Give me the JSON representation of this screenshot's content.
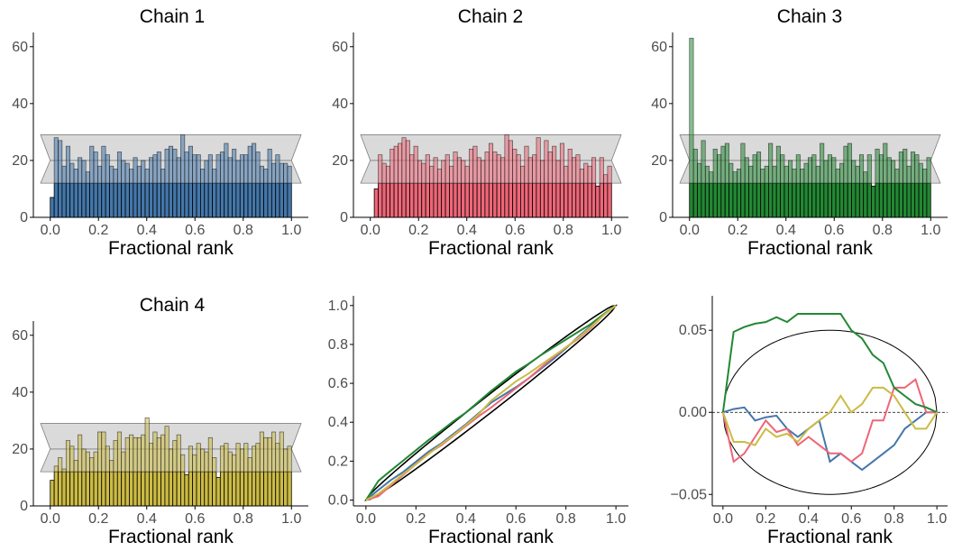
{
  "colors": {
    "chain1": "#4477aa",
    "chain2": "#ee6677",
    "chain3": "#228833",
    "chain4": "#ccbb44",
    "band": "#d3d3d3",
    "band_stroke": "#7f7f7f"
  },
  "chart_data": [
    {
      "type": "bar",
      "title": "Chain 1",
      "xlabel": "Fractional rank",
      "ylabel": "",
      "color": "#4477aa",
      "xlim": [
        -0.07,
        1.07
      ],
      "ylim": [
        0,
        65
      ],
      "xticks": [
        0.0,
        0.2,
        0.4,
        0.6,
        0.8,
        1.0
      ],
      "xtick_labels": [
        "0.0",
        "0.2",
        "0.4",
        "0.6",
        "0.8",
        "1.0"
      ],
      "yticks": [
        0,
        20,
        40,
        60
      ],
      "ytick_labels": [
        "0",
        "20",
        "40",
        "60"
      ],
      "band": {
        "upper": 29,
        "lower": 12,
        "mid": 20
      },
      "values": [
        7,
        28,
        27,
        18,
        25,
        19,
        17,
        21,
        20,
        16,
        25,
        23,
        18,
        25,
        22,
        18,
        17,
        23,
        20,
        19,
        17,
        21,
        18,
        20,
        17,
        21,
        22,
        23,
        17,
        24,
        25,
        24,
        21,
        29,
        23,
        25,
        22,
        22,
        17,
        20,
        22,
        17,
        22,
        23,
        26,
        21,
        24,
        20,
        22,
        22,
        25,
        26,
        23,
        18,
        17,
        24,
        19,
        22,
        19,
        19,
        18
      ]
    },
    {
      "type": "bar",
      "title": "Chain 2",
      "xlabel": "Fractional rank",
      "ylabel": "",
      "color": "#ee6677",
      "xlim": [
        -0.07,
        1.07
      ],
      "ylim": [
        0,
        65
      ],
      "xticks": [
        0.0,
        0.2,
        0.4,
        0.6,
        0.8,
        1.0
      ],
      "xtick_labels": [
        "0.0",
        "0.2",
        "0.4",
        "0.6",
        "0.8",
        "1.0"
      ],
      "yticks": [
        0,
        20,
        40,
        60
      ],
      "ytick_labels": [
        "0",
        "20",
        "40",
        "60"
      ],
      "band": {
        "upper": 29,
        "lower": 12,
        "mid": 20
      },
      "values": [
        0,
        10,
        22,
        19,
        18,
        24,
        25,
        26,
        28,
        27,
        22,
        25,
        20,
        19,
        22,
        18,
        21,
        17,
        20,
        22,
        18,
        23,
        21,
        20,
        18,
        24,
        25,
        21,
        20,
        23,
        26,
        23,
        22,
        21,
        29,
        27,
        24,
        22,
        18,
        25,
        21,
        22,
        28,
        20,
        27,
        23,
        25,
        20,
        26,
        18,
        24,
        21,
        22,
        17,
        19,
        18,
        21,
        11,
        21,
        15,
        18
      ]
    },
    {
      "type": "bar",
      "title": "Chain 3",
      "xlabel": "Fractional rank",
      "ylabel": "",
      "color": "#228833",
      "xlim": [
        -0.07,
        1.07
      ],
      "ylim": [
        0,
        65
      ],
      "xticks": [
        0.0,
        0.2,
        0.4,
        0.6,
        0.8,
        1.0
      ],
      "xtick_labels": [
        "0.0",
        "0.2",
        "0.4",
        "0.6",
        "0.8",
        "1.0"
      ],
      "yticks": [
        0,
        20,
        40,
        60
      ],
      "ytick_labels": [
        "0",
        "20",
        "40",
        "60"
      ],
      "band": {
        "upper": 29,
        "lower": 12,
        "mid": 20
      },
      "values": [
        63,
        24,
        19,
        27,
        18,
        16,
        24,
        22,
        25,
        26,
        19,
        16,
        17,
        26,
        21,
        18,
        22,
        23,
        17,
        18,
        26,
        18,
        25,
        22,
        18,
        20,
        17,
        22,
        17,
        19,
        21,
        22,
        18,
        26,
        20,
        22,
        21,
        17,
        19,
        25,
        26,
        20,
        18,
        22,
        16,
        22,
        11,
        24,
        22,
        26,
        21,
        20,
        17,
        23,
        24,
        18,
        23,
        22,
        19,
        17,
        21
      ]
    },
    {
      "type": "bar",
      "title": "Chain 4",
      "xlabel": "Fractional rank",
      "ylabel": "",
      "color": "#ccbb44",
      "xlim": [
        -0.07,
        1.07
      ],
      "ylim": [
        0,
        65
      ],
      "xticks": [
        0.0,
        0.2,
        0.4,
        0.6,
        0.8,
        1.0
      ],
      "xtick_labels": [
        "0.0",
        "0.2",
        "0.4",
        "0.6",
        "0.8",
        "1.0"
      ],
      "yticks": [
        0,
        20,
        40,
        60
      ],
      "ytick_labels": [
        "0",
        "20",
        "40",
        "60"
      ],
      "band": {
        "upper": 29,
        "lower": 12,
        "mid": 20
      },
      "values": [
        9,
        14,
        17,
        13,
        23,
        21,
        16,
        25,
        20,
        19,
        17,
        19,
        26,
        26,
        21,
        16,
        23,
        26,
        19,
        24,
        25,
        24,
        24,
        25,
        31,
        22,
        26,
        24,
        25,
        28,
        20,
        23,
        25,
        18,
        11,
        21,
        18,
        22,
        20,
        19,
        24,
        17,
        10,
        21,
        22,
        19,
        18,
        22,
        20,
        22,
        17,
        21,
        22,
        26,
        24,
        24,
        26,
        22,
        26,
        20,
        21
      ]
    },
    {
      "type": "line",
      "title": "",
      "xlabel": "Fractional rank",
      "ylabel": "",
      "xlim": [
        -0.05,
        1.05
      ],
      "ylim": [
        -0.03,
        1.05
      ],
      "xticks": [
        0.0,
        0.2,
        0.4,
        0.6,
        0.8,
        1.0
      ],
      "xtick_labels": [
        "0.0",
        "0.2",
        "0.4",
        "0.6",
        "0.8",
        "1.0"
      ],
      "yticks": [
        0.0,
        0.2,
        0.4,
        0.6,
        0.8,
        1.0
      ],
      "ytick_labels": [
        "0.0",
        "0.2",
        "0.4",
        "0.6",
        "0.8",
        "1.0"
      ],
      "envelope_halfwidth": 0.05,
      "x": [
        0.0,
        0.05,
        0.1,
        0.15,
        0.2,
        0.25,
        0.3,
        0.35,
        0.4,
        0.45,
        0.5,
        0.55,
        0.6,
        0.65,
        0.7,
        0.75,
        0.8,
        0.85,
        0.9,
        0.95,
        1.0
      ],
      "series": [
        {
          "color": "#4477aa",
          "values": [
            0.0,
            0.052,
            0.103,
            0.145,
            0.197,
            0.248,
            0.29,
            0.34,
            0.39,
            0.445,
            0.5,
            0.54,
            0.58,
            0.625,
            0.675,
            0.725,
            0.78,
            0.84,
            0.895,
            0.95,
            1.0
          ]
        },
        {
          "color": "#ee6677",
          "values": [
            0.0,
            0.02,
            0.075,
            0.13,
            0.185,
            0.24,
            0.28,
            0.33,
            0.38,
            0.43,
            0.475,
            0.525,
            0.575,
            0.625,
            0.68,
            0.735,
            0.785,
            0.83,
            0.885,
            0.95,
            1.0
          ]
        },
        {
          "color": "#228833",
          "values": [
            0.0,
            0.099,
            0.152,
            0.204,
            0.256,
            0.308,
            0.355,
            0.405,
            0.45,
            0.505,
            0.56,
            0.61,
            0.66,
            0.7,
            0.745,
            0.785,
            0.825,
            0.865,
            0.905,
            0.955,
            1.0
          ]
        },
        {
          "color": "#ccbb44",
          "values": [
            0.0,
            0.032,
            0.082,
            0.135,
            0.183,
            0.237,
            0.285,
            0.333,
            0.385,
            0.44,
            0.51,
            0.56,
            0.61,
            0.65,
            0.695,
            0.74,
            0.785,
            0.835,
            0.89,
            0.95,
            1.0
          ]
        }
      ]
    },
    {
      "type": "line",
      "title": "",
      "xlabel": "Fractional rank",
      "ylabel": "",
      "xlim": [
        -0.05,
        1.05
      ],
      "ylim": [
        -0.057,
        0.071
      ],
      "xticks": [
        0.0,
        0.2,
        0.4,
        0.6,
        0.8,
        1.0
      ],
      "xtick_labels": [
        "0.0",
        "0.2",
        "0.4",
        "0.6",
        "0.8",
        "1.0"
      ],
      "yticks": [
        -0.05,
        0.0,
        0.05
      ],
      "ytick_labels": [
        "−0.05",
        "0.00",
        "0.05"
      ],
      "ellipse_halfheight": 0.05,
      "reference_line": 0.0,
      "x": [
        0.0,
        0.05,
        0.1,
        0.15,
        0.2,
        0.25,
        0.3,
        0.35,
        0.4,
        0.45,
        0.5,
        0.55,
        0.6,
        0.65,
        0.7,
        0.75,
        0.8,
        0.85,
        0.9,
        0.95,
        1.0
      ],
      "series": [
        {
          "color": "#4477aa",
          "values": [
            0.0,
            0.002,
            0.003,
            -0.005,
            -0.003,
            -0.002,
            -0.01,
            -0.015,
            -0.01,
            -0.005,
            -0.03,
            -0.025,
            -0.03,
            -0.035,
            -0.03,
            -0.025,
            -0.02,
            -0.01,
            -0.005,
            0.0,
            0.0
          ]
        },
        {
          "color": "#ee6677",
          "values": [
            0.0,
            -0.03,
            -0.025,
            -0.015,
            -0.005,
            -0.012,
            -0.01,
            -0.02,
            -0.015,
            -0.02,
            -0.025,
            -0.025,
            -0.03,
            -0.025,
            -0.005,
            -0.005,
            0.015,
            0.015,
            0.02,
            0.0,
            0.0
          ]
        },
        {
          "color": "#228833",
          "values": [
            0.0,
            0.049,
            0.052,
            0.054,
            0.055,
            0.058,
            0.055,
            0.06,
            0.06,
            0.06,
            0.06,
            0.06,
            0.05,
            0.045,
            0.035,
            0.03,
            0.015,
            0.01,
            0.005,
            0.003,
            0.0
          ]
        },
        {
          "color": "#ccbb44",
          "values": [
            0.0,
            -0.018,
            -0.018,
            -0.02,
            -0.01,
            -0.015,
            -0.013,
            -0.018,
            -0.01,
            -0.005,
            0.0,
            0.01,
            0.0,
            0.005,
            0.015,
            0.015,
            0.01,
            0.0,
            -0.01,
            -0.01,
            0.0
          ]
        }
      ]
    }
  ]
}
